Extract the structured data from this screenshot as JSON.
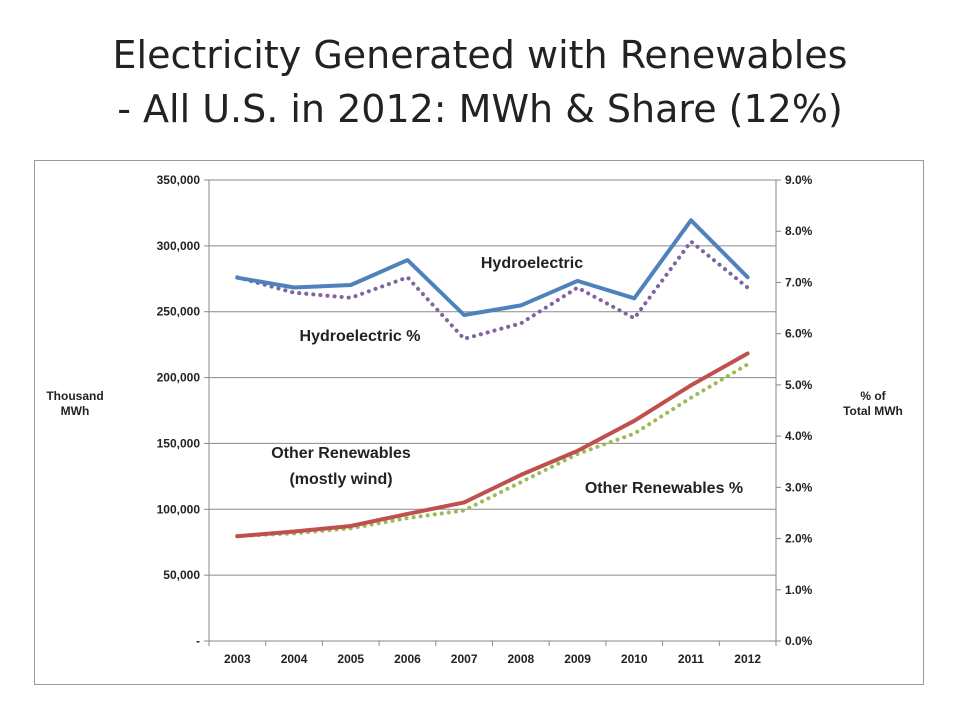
{
  "title": {
    "line1": "Electricity Generated with Renewables",
    "line2": "- All U.S. in 2012: MWh & Share (12%)"
  },
  "chart_data": {
    "type": "line",
    "x": [
      "2003",
      "2004",
      "2005",
      "2006",
      "2007",
      "2008",
      "2009",
      "2010",
      "2011",
      "2012"
    ],
    "y_left": {
      "label_lines": [
        "Thousand",
        "MWh"
      ],
      "range": [
        0,
        350000
      ],
      "ticks": [
        0,
        50000,
        100000,
        150000,
        200000,
        250000,
        300000,
        350000
      ],
      "tick_labels": [
        "-",
        "50,000",
        "100,000",
        "150,000",
        "200,000",
        "250,000",
        "300,000",
        "350,000"
      ]
    },
    "y_right": {
      "label_lines": [
        "% of",
        "Total MWh"
      ],
      "range": [
        0,
        9
      ],
      "ticks": [
        0,
        1,
        2,
        3,
        4,
        5,
        6,
        7,
        8,
        9
      ],
      "tick_labels": [
        "0.0%",
        "1.0%",
        "2.0%",
        "3.0%",
        "4.0%",
        "5.0%",
        "6.0%",
        "7.0%",
        "8.0%",
        "9.0%"
      ]
    },
    "grid": "horizontal",
    "series": [
      {
        "key": "hydro",
        "axis": "left",
        "style": "solid",
        "color": "#4f81bd",
        "values": [
          275800,
          268400,
          270300,
          289200,
          247500,
          254800,
          273400,
          260200,
          319400,
          276200
        ]
      },
      {
        "key": "other",
        "axis": "left",
        "style": "solid",
        "color": "#c0504d",
        "values": [
          79500,
          83100,
          87300,
          96500,
          105200,
          126100,
          144300,
          167200,
          194100,
          218300
        ]
      },
      {
        "key": "hydro_pct",
        "axis": "right",
        "style": "dotted",
        "color": "#8064a2",
        "values": [
          7.1,
          6.8,
          6.7,
          7.1,
          5.9,
          6.2,
          6.9,
          6.3,
          7.8,
          6.9
        ]
      },
      {
        "key": "other_pct",
        "axis": "right",
        "style": "dotted",
        "color": "#9bbb59",
        "values": [
          2.05,
          2.1,
          2.2,
          2.4,
          2.55,
          3.1,
          3.65,
          4.05,
          4.75,
          5.4
        ]
      }
    ],
    "annotations": {
      "hydro": [
        "Hydroelectric"
      ],
      "hydro_pct": [
        "Hydroelectric %"
      ],
      "other": [
        "Other Renewables",
        "(mostly wind)"
      ],
      "other_pct": [
        "Other Renewables %"
      ]
    }
  }
}
